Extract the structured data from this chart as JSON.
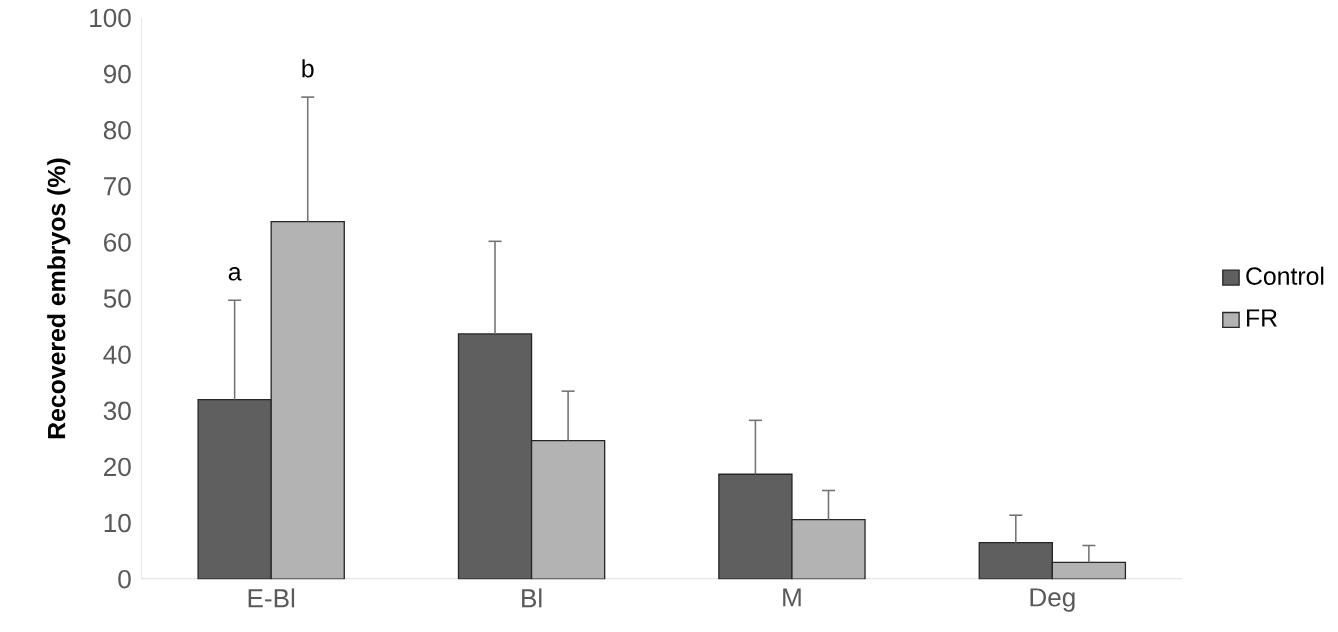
{
  "chart_data": {
    "type": "bar",
    "ylabel": "Recovered embryos (%)",
    "categories": [
      "E-Bl",
      "Bl",
      "M",
      "Deg"
    ],
    "series": [
      {
        "name": "Control",
        "color": "#5f5f5f",
        "values": [
          32,
          43.7,
          18.7,
          6.5
        ],
        "errors": [
          [
            32,
            49.7
          ],
          [
            43.7,
            60.2
          ],
          [
            18.7,
            28.3
          ],
          [
            6.5,
            11.4
          ]
        ]
      },
      {
        "name": "FR",
        "color": "#b3b3b3",
        "values": [
          63.7,
          24.7,
          10.6,
          3.0
        ],
        "errors": [
          [
            63.7,
            85.9
          ],
          [
            24.7,
            33.5
          ],
          [
            10.6,
            15.8
          ],
          [
            3.0,
            6.0
          ]
        ]
      }
    ],
    "ylim": [
      0,
      100
    ],
    "yticks": [
      0,
      10,
      20,
      30,
      40,
      50,
      60,
      70,
      80,
      90,
      100
    ],
    "annotations": [
      "a",
      "b"
    ],
    "grid": false,
    "legend": "right"
  }
}
